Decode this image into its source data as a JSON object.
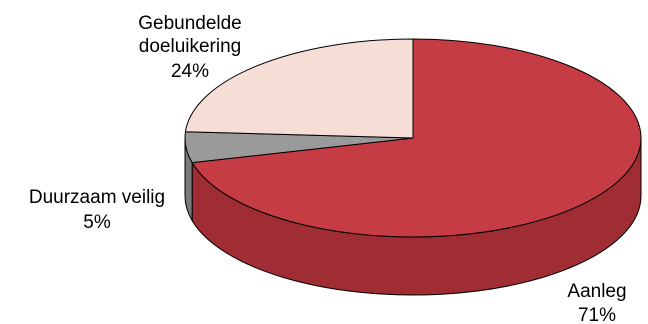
{
  "chart_data": {
    "type": "pie",
    "title": "",
    "three_d": true,
    "slices": [
      {
        "label": "Aanleg",
        "value": 71,
        "value_label": "71%",
        "color": "#c63c45",
        "side_color": "#a02d33"
      },
      {
        "label": "Duurzaam veilig",
        "value": 5,
        "value_label": "5%",
        "color": "#9a9a9a",
        "side_color": "#7a7a7a"
      },
      {
        "label": "Gebundelde doeluikering",
        "value": 24,
        "value_label": "24%",
        "color": "#f6ddd6",
        "side_color": "#d8bcb4"
      }
    ]
  },
  "labels": {
    "aanleg": {
      "line1": "Aanleg",
      "line2": "71%"
    },
    "duurzaam": {
      "line1": "Duurzaam veilig",
      "line2": "5%"
    },
    "gebundelde": {
      "line1": "Gebundelde",
      "line2": "doeluikering",
      "line3": "24%"
    }
  }
}
